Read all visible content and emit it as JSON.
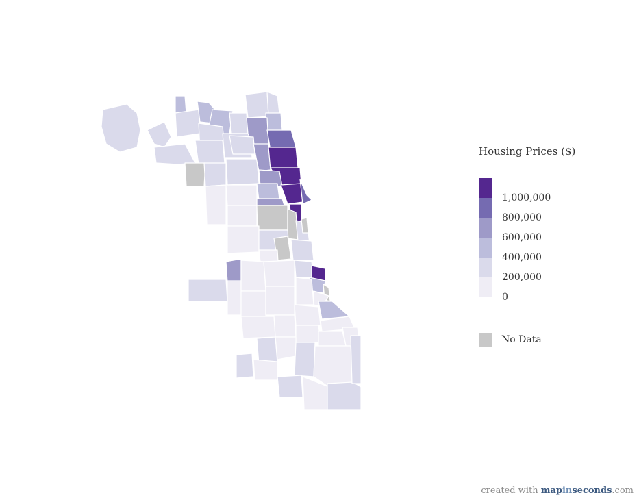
{
  "legend": {
    "title": "Housing Prices ($)",
    "bins": [
      {
        "label": "1,000,000",
        "color": "#54278f"
      },
      {
        "label": "800,000",
        "color": "#756bb1"
      },
      {
        "label": "600,000",
        "color": "#9e9ac8"
      },
      {
        "label": "400,000",
        "color": "#bcbddc"
      },
      {
        "label": "200,000",
        "color": "#dadaeb"
      },
      {
        "label": "0",
        "color": "#efedf5"
      }
    ],
    "no_data": {
      "label": "No Data",
      "color": "#c8c8c8"
    }
  },
  "credit": {
    "prefix": "created with ",
    "brand_a": "map",
    "brand_b": "in",
    "brand_c": "seconds",
    "suffix": ".com"
  },
  "map_colors": {
    "border": "#ffffff",
    "lake": "#ffffff"
  }
}
